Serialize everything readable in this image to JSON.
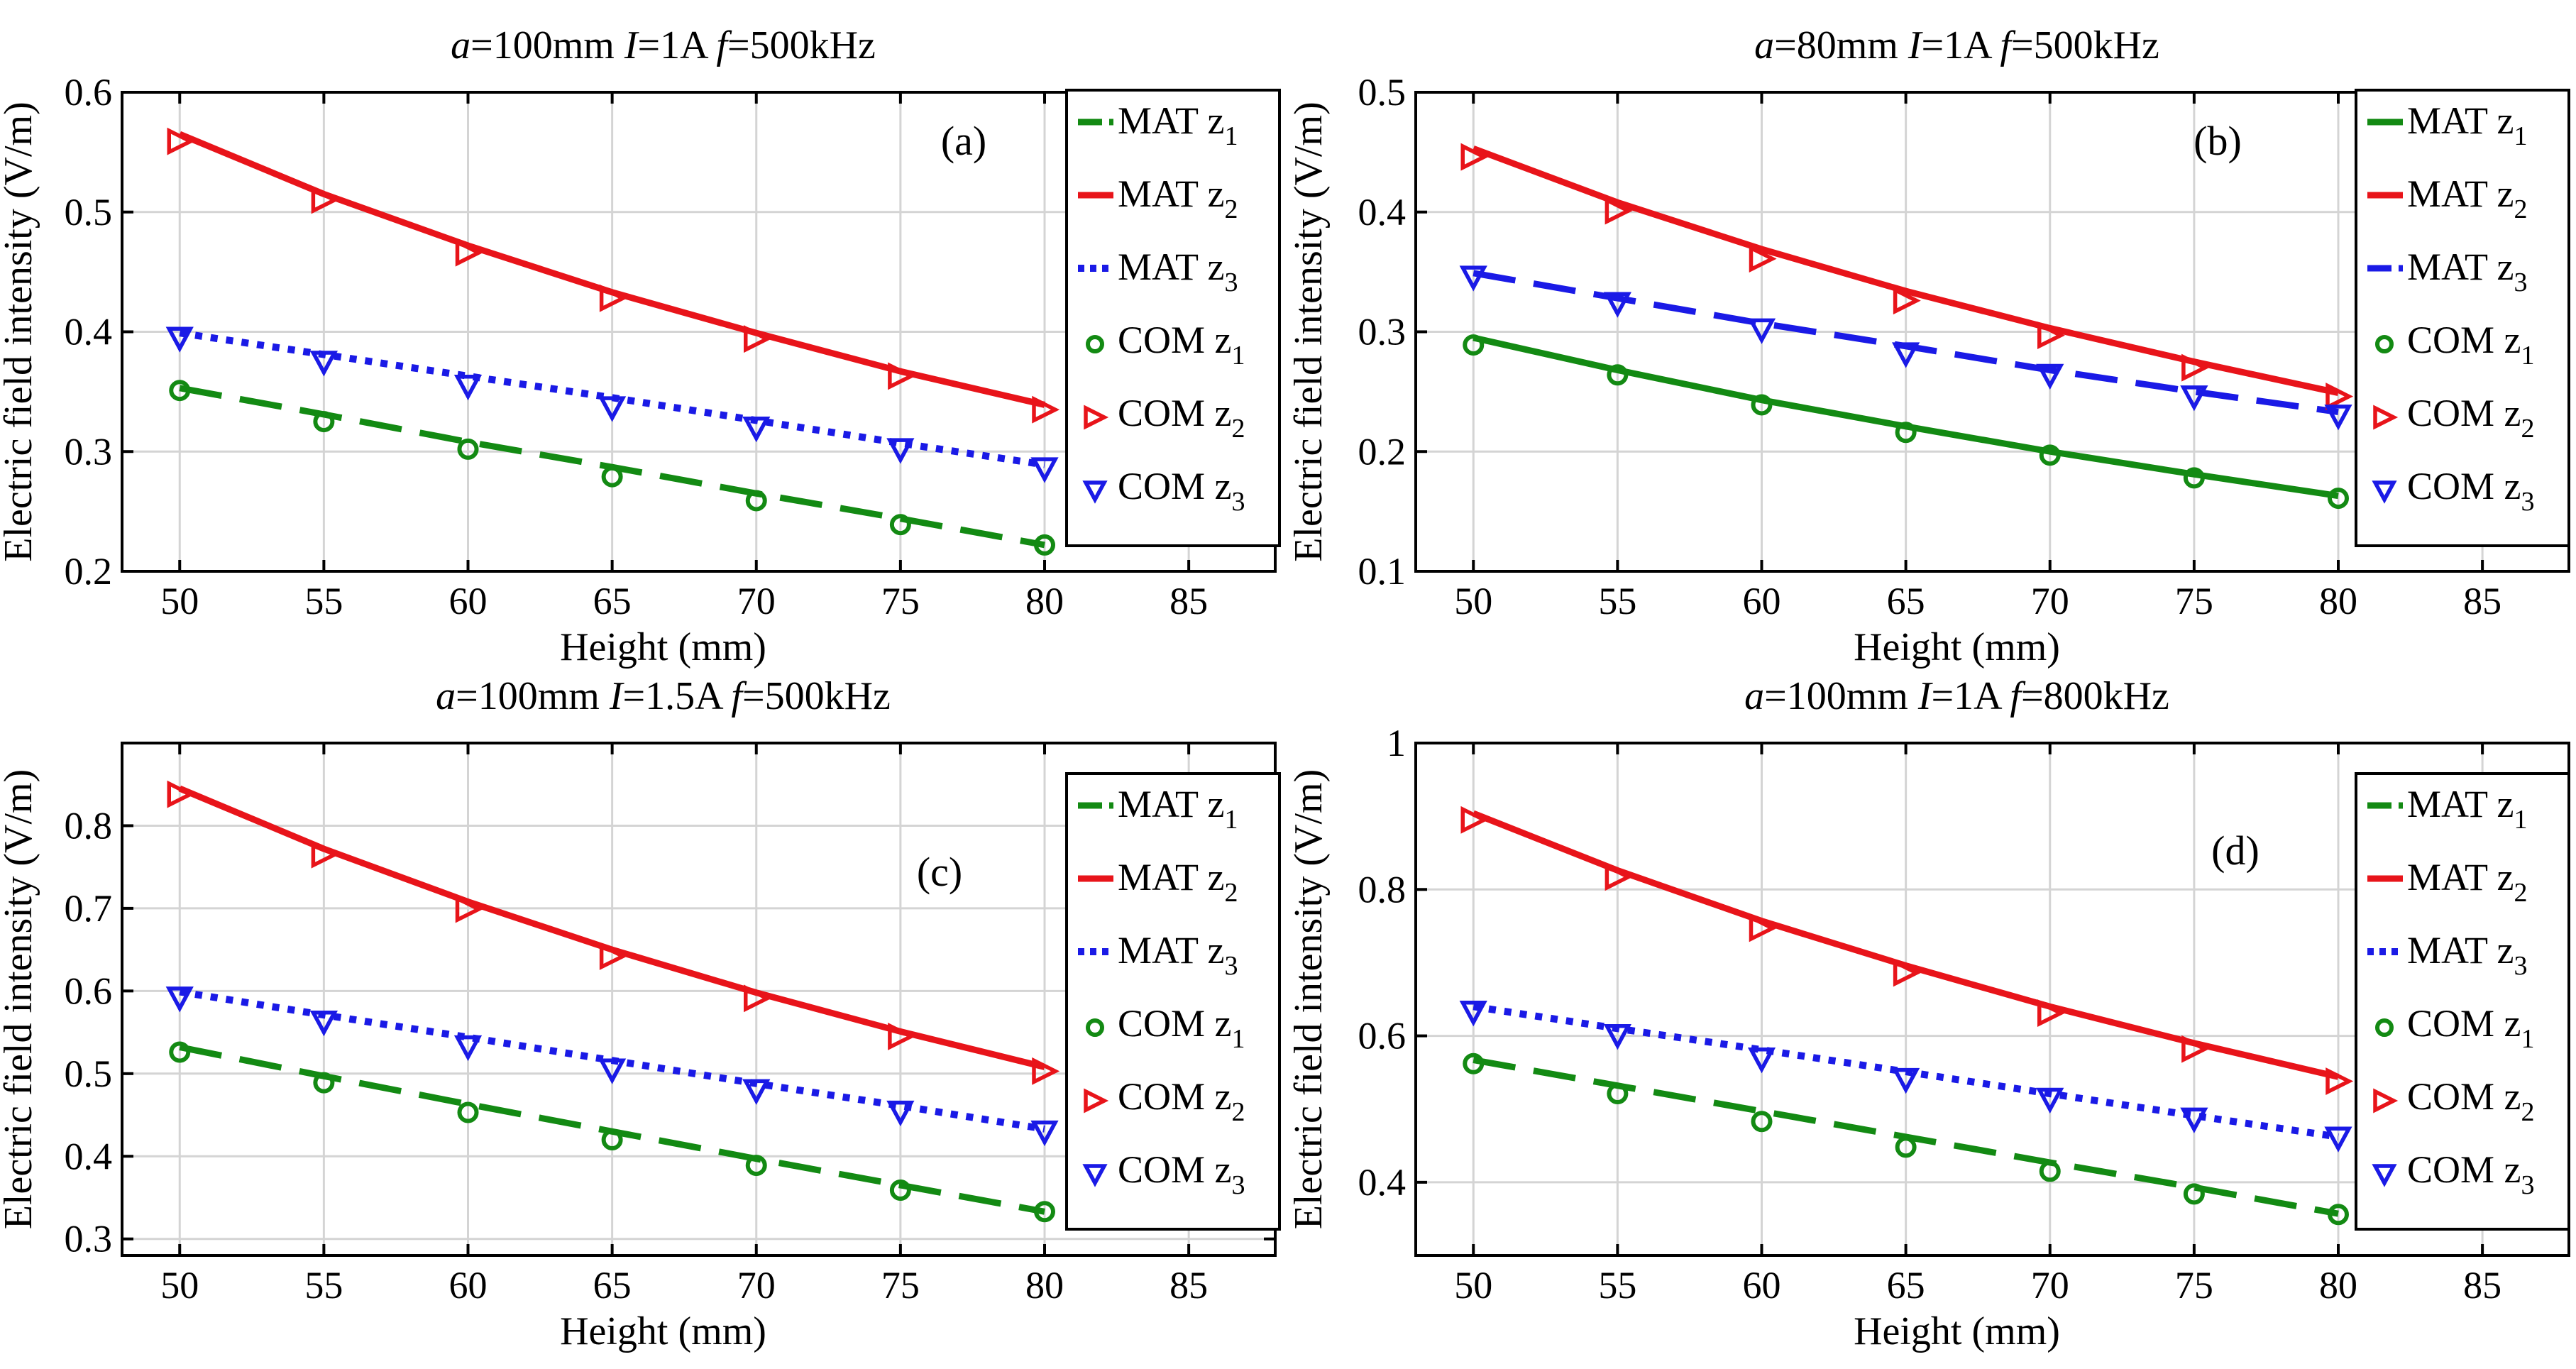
{
  "figure_domain": "chart",
  "chart_data": [
    {
      "panel": "(a)",
      "type": "line",
      "title": {
        "p1": "a",
        "p2": "=100mm ",
        "p3": "I",
        "p4": "=1A ",
        "p5": "f",
        "p6": "=500kHz"
      },
      "xlabel": "Height (mm)",
      "ylabel": "Electric field intensity (V/m)",
      "xlim": [
        48,
        88
      ],
      "ylim": [
        0.2,
        0.6
      ],
      "xticks": [
        50,
        55,
        60,
        65,
        70,
        75,
        80,
        85
      ],
      "yticks": [
        0.2,
        0.3,
        0.4,
        0.5,
        0.6
      ],
      "tick_decimals": 1,
      "x": [
        50,
        55,
        60,
        65,
        70,
        75,
        80
      ],
      "series": [
        {
          "name": "MAT z1",
          "kind": "line",
          "style": "dashed",
          "color": "#138a13",
          "values": [
            0.353,
            0.331,
            0.308,
            0.287,
            0.265,
            0.244,
            0.222
          ]
        },
        {
          "name": "MAT z2",
          "kind": "line",
          "style": "solid",
          "color": "#e8141a",
          "values": [
            0.565,
            0.515,
            0.472,
            0.433,
            0.399,
            0.367,
            0.339
          ]
        },
        {
          "name": "MAT z3",
          "kind": "line",
          "style": "dotted",
          "color": "#1a1ae6",
          "values": [
            0.399,
            0.381,
            0.363,
            0.345,
            0.326,
            0.307,
            0.289
          ]
        },
        {
          "name": "COM z1",
          "kind": "marker",
          "marker": "circle",
          "color": "#138a13",
          "values": [
            0.351,
            0.325,
            0.302,
            0.279,
            0.259,
            0.239,
            0.222
          ]
        },
        {
          "name": "COM z2",
          "kind": "marker",
          "marker": "triangle-right",
          "color": "#e8141a",
          "values": [
            0.559,
            0.51,
            0.466,
            0.428,
            0.394,
            0.363,
            0.335
          ]
        },
        {
          "name": "COM z3",
          "kind": "marker",
          "marker": "triangle-down",
          "color": "#1a1ae6",
          "values": [
            0.395,
            0.375,
            0.355,
            0.337,
            0.32,
            0.302,
            0.286
          ]
        }
      ]
    },
    {
      "panel": "(b)",
      "type": "line",
      "title": {
        "p1": "a",
        "p2": "=80mm ",
        "p3": "I",
        "p4": "=1A ",
        "p5": "f",
        "p6": "=500kHz"
      },
      "xlabel": "Height (mm)",
      "ylabel": "Electric field intensity (V/m)",
      "xlim": [
        48,
        88
      ],
      "ylim": [
        0.1,
        0.5
      ],
      "xticks": [
        50,
        55,
        60,
        65,
        70,
        75,
        80,
        85
      ],
      "yticks": [
        0.1,
        0.2,
        0.3,
        0.4,
        0.5
      ],
      "tick_decimals": 1,
      "x": [
        50,
        55,
        60,
        65,
        70,
        75,
        80
      ],
      "series": [
        {
          "name": "MAT z1",
          "kind": "line",
          "style": "solid",
          "color": "#138a13",
          "values": [
            0.295,
            0.268,
            0.243,
            0.221,
            0.2,
            0.181,
            0.163
          ]
        },
        {
          "name": "MAT z2",
          "kind": "line",
          "style": "solid",
          "color": "#e8141a",
          "values": [
            0.453,
            0.408,
            0.369,
            0.334,
            0.303,
            0.275,
            0.249
          ]
        },
        {
          "name": "MAT z3",
          "kind": "line",
          "style": "dashed",
          "color": "#1a1ae6",
          "values": [
            0.349,
            0.328,
            0.307,
            0.288,
            0.268,
            0.25,
            0.233
          ]
        },
        {
          "name": "COM z1",
          "kind": "marker",
          "marker": "circle",
          "color": "#138a13",
          "values": [
            0.289,
            0.264,
            0.239,
            0.216,
            0.197,
            0.178,
            0.161
          ]
        },
        {
          "name": "COM z2",
          "kind": "marker",
          "marker": "triangle-right",
          "color": "#e8141a",
          "values": [
            0.446,
            0.401,
            0.361,
            0.326,
            0.297,
            0.27,
            0.246
          ]
        },
        {
          "name": "COM z3",
          "kind": "marker",
          "marker": "triangle-down",
          "color": "#1a1ae6",
          "values": [
            0.346,
            0.324,
            0.302,
            0.282,
            0.264,
            0.246,
            0.23
          ]
        }
      ]
    },
    {
      "panel": "(c)",
      "type": "line",
      "title": {
        "p1": "a",
        "p2": "=100mm ",
        "p3": "I",
        "p4": "=1.5A ",
        "p5": "f",
        "p6": "=500kHz"
      },
      "xlabel": "Height (mm)",
      "ylabel": "Electric field intensity (V/m)",
      "xlim": [
        48,
        88
      ],
      "ylim": [
        0.28,
        0.9
      ],
      "xticks": [
        50,
        55,
        60,
        65,
        70,
        75,
        80,
        85
      ],
      "yticks": [
        0.3,
        0.4,
        0.5,
        0.6,
        0.7,
        0.8
      ],
      "tick_decimals": 1,
      "x": [
        50,
        55,
        60,
        65,
        70,
        75,
        80
      ],
      "series": [
        {
          "name": "MAT z1",
          "kind": "line",
          "style": "dashed",
          "color": "#138a13",
          "values": [
            0.532,
            0.497,
            0.463,
            0.43,
            0.397,
            0.365,
            0.333
          ]
        },
        {
          "name": "MAT z2",
          "kind": "line",
          "style": "solid",
          "color": "#e8141a",
          "values": [
            0.845,
            0.772,
            0.708,
            0.65,
            0.598,
            0.551,
            0.508
          ]
        },
        {
          "name": "MAT z3",
          "kind": "line",
          "style": "dotted",
          "color": "#1a1ae6",
          "values": [
            0.599,
            0.571,
            0.544,
            0.516,
            0.488,
            0.461,
            0.433
          ]
        },
        {
          "name": "COM z1",
          "kind": "marker",
          "marker": "circle",
          "color": "#138a13",
          "values": [
            0.526,
            0.489,
            0.453,
            0.42,
            0.389,
            0.359,
            0.333
          ]
        },
        {
          "name": "COM z2",
          "kind": "marker",
          "marker": "triangle-right",
          "color": "#e8141a",
          "values": [
            0.838,
            0.765,
            0.699,
            0.642,
            0.591,
            0.545,
            0.503
          ]
        },
        {
          "name": "COM z3",
          "kind": "marker",
          "marker": "triangle-down",
          "color": "#1a1ae6",
          "values": [
            0.592,
            0.563,
            0.533,
            0.505,
            0.48,
            0.454,
            0.43
          ]
        }
      ]
    },
    {
      "panel": "(d)",
      "type": "line",
      "title": {
        "p1": "a",
        "p2": "=100mm ",
        "p3": "I",
        "p4": "=1A ",
        "p5": "f",
        "p6": "=800kHz"
      },
      "xlabel": "Height (mm)",
      "ylabel": "Electric field intensity (V/m)",
      "xlim": [
        48,
        88
      ],
      "ylim": [
        0.3,
        1.0
      ],
      "xticks": [
        50,
        55,
        60,
        65,
        70,
        75,
        80,
        85
      ],
      "yticks": [
        0.4,
        0.6,
        0.8,
        1
      ],
      "tick_decimals": 1,
      "x": [
        50,
        55,
        60,
        65,
        70,
        75,
        80
      ],
      "series": [
        {
          "name": "MAT z1",
          "kind": "line",
          "style": "dashed",
          "color": "#138a13",
          "values": [
            0.567,
            0.532,
            0.497,
            0.462,
            0.427,
            0.393,
            0.357
          ]
        },
        {
          "name": "MAT z2",
          "kind": "line",
          "style": "solid",
          "color": "#e8141a",
          "values": [
            0.904,
            0.826,
            0.757,
            0.696,
            0.64,
            0.59,
            0.544
          ]
        },
        {
          "name": "MAT z3",
          "kind": "line",
          "style": "dotted",
          "color": "#1a1ae6",
          "values": [
            0.64,
            0.61,
            0.581,
            0.551,
            0.521,
            0.491,
            0.462
          ]
        },
        {
          "name": "COM z1",
          "kind": "marker",
          "marker": "circle",
          "color": "#138a13",
          "values": [
            0.562,
            0.521,
            0.483,
            0.448,
            0.415,
            0.384,
            0.356
          ]
        },
        {
          "name": "COM z2",
          "kind": "marker",
          "marker": "triangle-right",
          "color": "#e8141a",
          "values": [
            0.895,
            0.817,
            0.747,
            0.686,
            0.631,
            0.582,
            0.538
          ]
        },
        {
          "name": "COM z3",
          "kind": "marker",
          "marker": "triangle-down",
          "color": "#1a1ae6",
          "values": [
            0.633,
            0.601,
            0.569,
            0.541,
            0.514,
            0.487,
            0.461
          ]
        }
      ]
    }
  ]
}
